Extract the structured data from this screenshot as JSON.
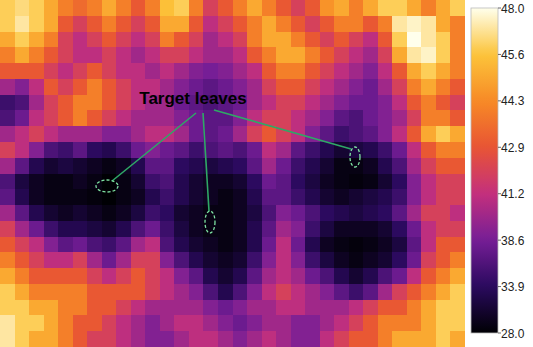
{
  "chart_data": {
    "type": "heatmap",
    "annotation": "Target leaves",
    "values": [
      [
        46,
        46.5,
        46,
        45,
        44,
        43.5,
        44,
        45,
        44,
        43,
        44,
        45.5,
        46,
        44,
        42,
        43,
        44,
        45,
        44,
        43,
        42,
        43,
        44.5,
        45,
        44,
        45,
        46,
        46,
        45,
        44,
        45,
        46
      ],
      [
        46,
        47,
        46,
        45,
        43,
        42,
        43,
        44,
        43,
        42,
        43,
        45,
        45,
        43,
        41,
        42,
        43,
        44,
        45,
        44,
        43,
        42,
        43,
        44,
        44,
        43,
        44,
        47,
        47.5,
        47,
        45,
        44
      ],
      [
        45,
        46,
        45,
        44,
        42,
        41,
        42,
        43,
        42,
        41,
        42,
        44,
        43,
        42,
        40,
        41,
        42,
        44,
        45,
        45,
        44,
        43,
        42,
        43,
        42,
        41,
        43,
        46,
        48,
        47,
        46,
        44
      ],
      [
        44,
        45,
        44,
        43,
        42,
        41,
        41,
        42,
        41,
        40,
        41,
        42,
        42,
        41,
        40,
        40,
        41,
        43,
        44,
        45,
        45,
        44,
        43,
        42,
        41,
        40,
        42,
        45,
        47,
        47.5,
        46,
        44
      ],
      [
        43,
        43,
        43,
        42,
        41,
        42,
        43,
        42,
        41,
        41,
        40,
        41,
        40,
        39,
        38.6,
        39,
        40,
        41,
        43,
        44,
        44,
        43,
        42,
        41,
        40,
        39,
        41,
        43,
        45,
        46,
        45,
        44
      ],
      [
        40,
        39,
        41,
        43,
        42,
        43,
        44,
        43,
        42,
        41,
        41,
        40,
        39,
        38,
        37,
        38,
        39,
        40,
        42,
        43,
        43,
        42,
        41,
        40,
        39,
        38,
        40,
        42,
        44,
        45,
        44,
        43
      ],
      [
        35,
        36,
        40,
        42,
        43,
        44,
        44,
        43,
        42,
        41,
        40,
        40,
        38,
        37,
        36,
        37,
        38,
        40,
        41,
        42,
        42,
        41,
        40,
        39,
        38,
        38,
        39,
        41,
        43,
        44,
        43,
        42
      ],
      [
        36,
        38,
        41,
        42,
        43,
        44,
        43,
        42,
        41,
        40,
        40,
        40,
        39,
        38,
        37,
        37,
        39,
        41,
        42,
        42,
        41,
        40,
        39,
        37,
        36,
        38,
        39,
        40,
        42,
        44,
        44,
        43
      ],
      [
        40,
        41,
        42,
        41,
        40,
        40,
        40,
        39,
        39,
        40,
        41,
        41,
        40,
        38,
        37,
        38,
        40,
        42,
        43,
        42,
        41,
        39,
        37,
        35,
        36,
        37,
        39,
        41,
        43,
        45,
        46,
        45
      ],
      [
        42,
        41,
        39,
        36,
        35,
        37,
        34,
        33,
        35,
        38,
        39,
        38,
        37,
        35,
        36,
        37,
        36,
        38,
        41,
        40,
        37,
        35,
        33,
        31,
        32,
        33,
        35,
        38,
        41,
        43,
        44,
        44
      ],
      [
        40,
        37,
        33,
        31,
        32,
        31,
        30,
        29,
        30,
        33,
        37,
        37,
        34,
        33,
        32,
        33,
        34,
        37,
        40,
        38,
        35,
        33,
        31,
        29,
        29,
        30,
        33,
        36,
        40,
        42,
        43,
        43
      ],
      [
        36,
        32,
        30,
        29,
        29,
        30,
        29,
        28,
        29,
        31,
        35,
        36,
        33,
        31,
        30,
        30,
        31,
        34,
        38,
        37,
        34,
        32,
        30,
        29,
        28.5,
        29,
        31,
        34,
        39,
        41,
        42,
        42
      ],
      [
        37,
        33,
        30,
        29,
        29,
        29,
        28.5,
        28,
        29,
        30,
        33,
        35,
        33,
        31,
        30,
        29,
        30,
        33,
        37,
        37,
        35,
        33,
        31,
        30,
        31,
        32,
        33,
        35,
        39,
        41,
        42,
        42
      ],
      [
        40,
        37,
        33,
        31,
        30,
        31,
        30,
        29,
        30,
        32,
        35,
        34,
        31,
        30,
        29,
        29,
        30,
        32,
        36,
        39,
        38,
        36,
        34,
        33,
        32,
        33,
        34,
        37,
        40,
        42,
        42,
        41
      ],
      [
        42,
        40,
        38,
        35,
        33,
        33,
        32,
        31,
        33,
        36,
        38,
        35,
        32,
        30,
        29,
        29,
        30,
        33,
        37,
        40,
        39,
        35,
        32,
        30,
        30,
        30,
        31,
        34,
        38,
        41,
        42,
        42
      ],
      [
        43,
        42,
        41,
        39,
        37,
        38,
        36,
        35,
        37,
        40,
        41,
        36,
        33,
        31,
        30,
        29,
        30,
        33,
        38,
        41,
        38,
        33,
        30,
        29,
        28.5,
        29,
        30,
        32,
        37,
        41,
        43,
        43
      ],
      [
        44,
        43,
        42,
        41,
        41,
        42,
        40,
        38,
        40,
        42,
        42,
        39,
        36,
        33,
        31,
        30,
        31,
        35,
        39,
        41,
        39,
        35,
        32,
        30,
        29,
        30,
        31,
        34,
        38,
        42,
        43,
        44
      ],
      [
        45,
        44,
        43,
        43,
        43,
        43,
        42,
        41,
        42,
        43,
        42,
        41,
        39,
        37,
        33,
        31,
        33,
        37,
        40,
        41,
        40,
        38,
        36,
        33,
        31,
        33,
        36,
        38,
        41,
        43,
        44,
        45
      ],
      [
        46,
        45,
        44,
        44,
        44,
        44,
        43,
        43,
        43,
        43,
        42,
        41,
        40,
        39,
        36,
        33,
        36,
        39,
        41,
        42,
        41,
        40,
        39,
        37,
        35,
        37,
        40,
        42,
        43,
        44,
        45,
        46
      ],
      [
        46,
        46,
        45,
        45,
        44,
        44,
        43,
        43,
        42,
        41,
        40,
        40,
        40,
        40,
        39,
        38,
        39,
        40,
        40,
        41,
        41,
        40,
        40,
        40,
        41,
        42,
        43,
        43,
        44,
        45,
        46,
        46
      ],
      [
        47,
        46,
        46,
        45,
        44,
        43,
        43,
        42,
        41,
        40,
        39,
        40,
        41,
        41,
        40,
        39,
        38,
        39,
        40,
        40,
        39,
        39,
        40,
        41,
        42,
        43,
        44,
        44,
        44,
        45,
        46,
        46
      ],
      [
        47,
        46,
        45,
        45,
        44,
        43,
        42,
        42,
        41,
        40,
        39,
        39,
        40,
        41,
        41,
        40,
        39,
        40,
        41,
        40,
        39,
        39,
        41,
        42,
        43,
        43,
        44,
        45,
        45,
        45,
        46,
        45
      ]
    ],
    "colorbar_lim": [
      28,
      48
    ],
    "colorbar_ticks": [
      {
        "value": 28,
        "label": "28.0"
      },
      {
        "value": 33.9,
        "label": "33.9"
      },
      {
        "value": 38.6,
        "label": "38.6"
      },
      {
        "value": 41.2,
        "label": "41.2"
      },
      {
        "value": 42.9,
        "label": "42.9"
      },
      {
        "value": 44.3,
        "label": "44.3"
      },
      {
        "value": 45.6,
        "label": "45.6"
      },
      {
        "value": 48,
        "label": "48.0"
      }
    ]
  }
}
